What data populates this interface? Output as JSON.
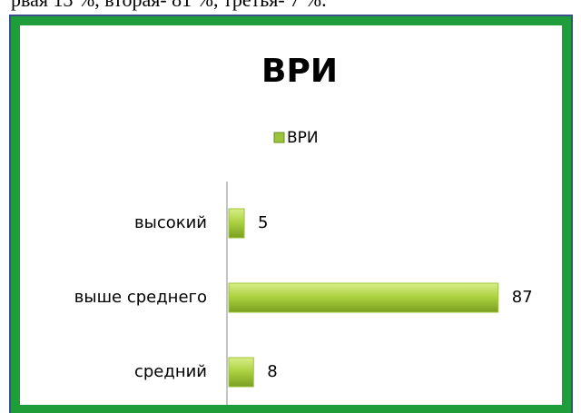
{
  "page_text": "рвая 13 %, вторая- 81 %, третья- 7 %.",
  "chart_data": {
    "type": "bar",
    "orientation": "horizontal",
    "title": "ВРИ",
    "categories": [
      "высокий",
      "выше среднего",
      "средний"
    ],
    "series": [
      {
        "name": "ВРИ",
        "color": "#9cc43a",
        "values": [
          5,
          87,
          8
        ]
      }
    ],
    "xlim": [
      0,
      90
    ],
    "legend": "top"
  }
}
